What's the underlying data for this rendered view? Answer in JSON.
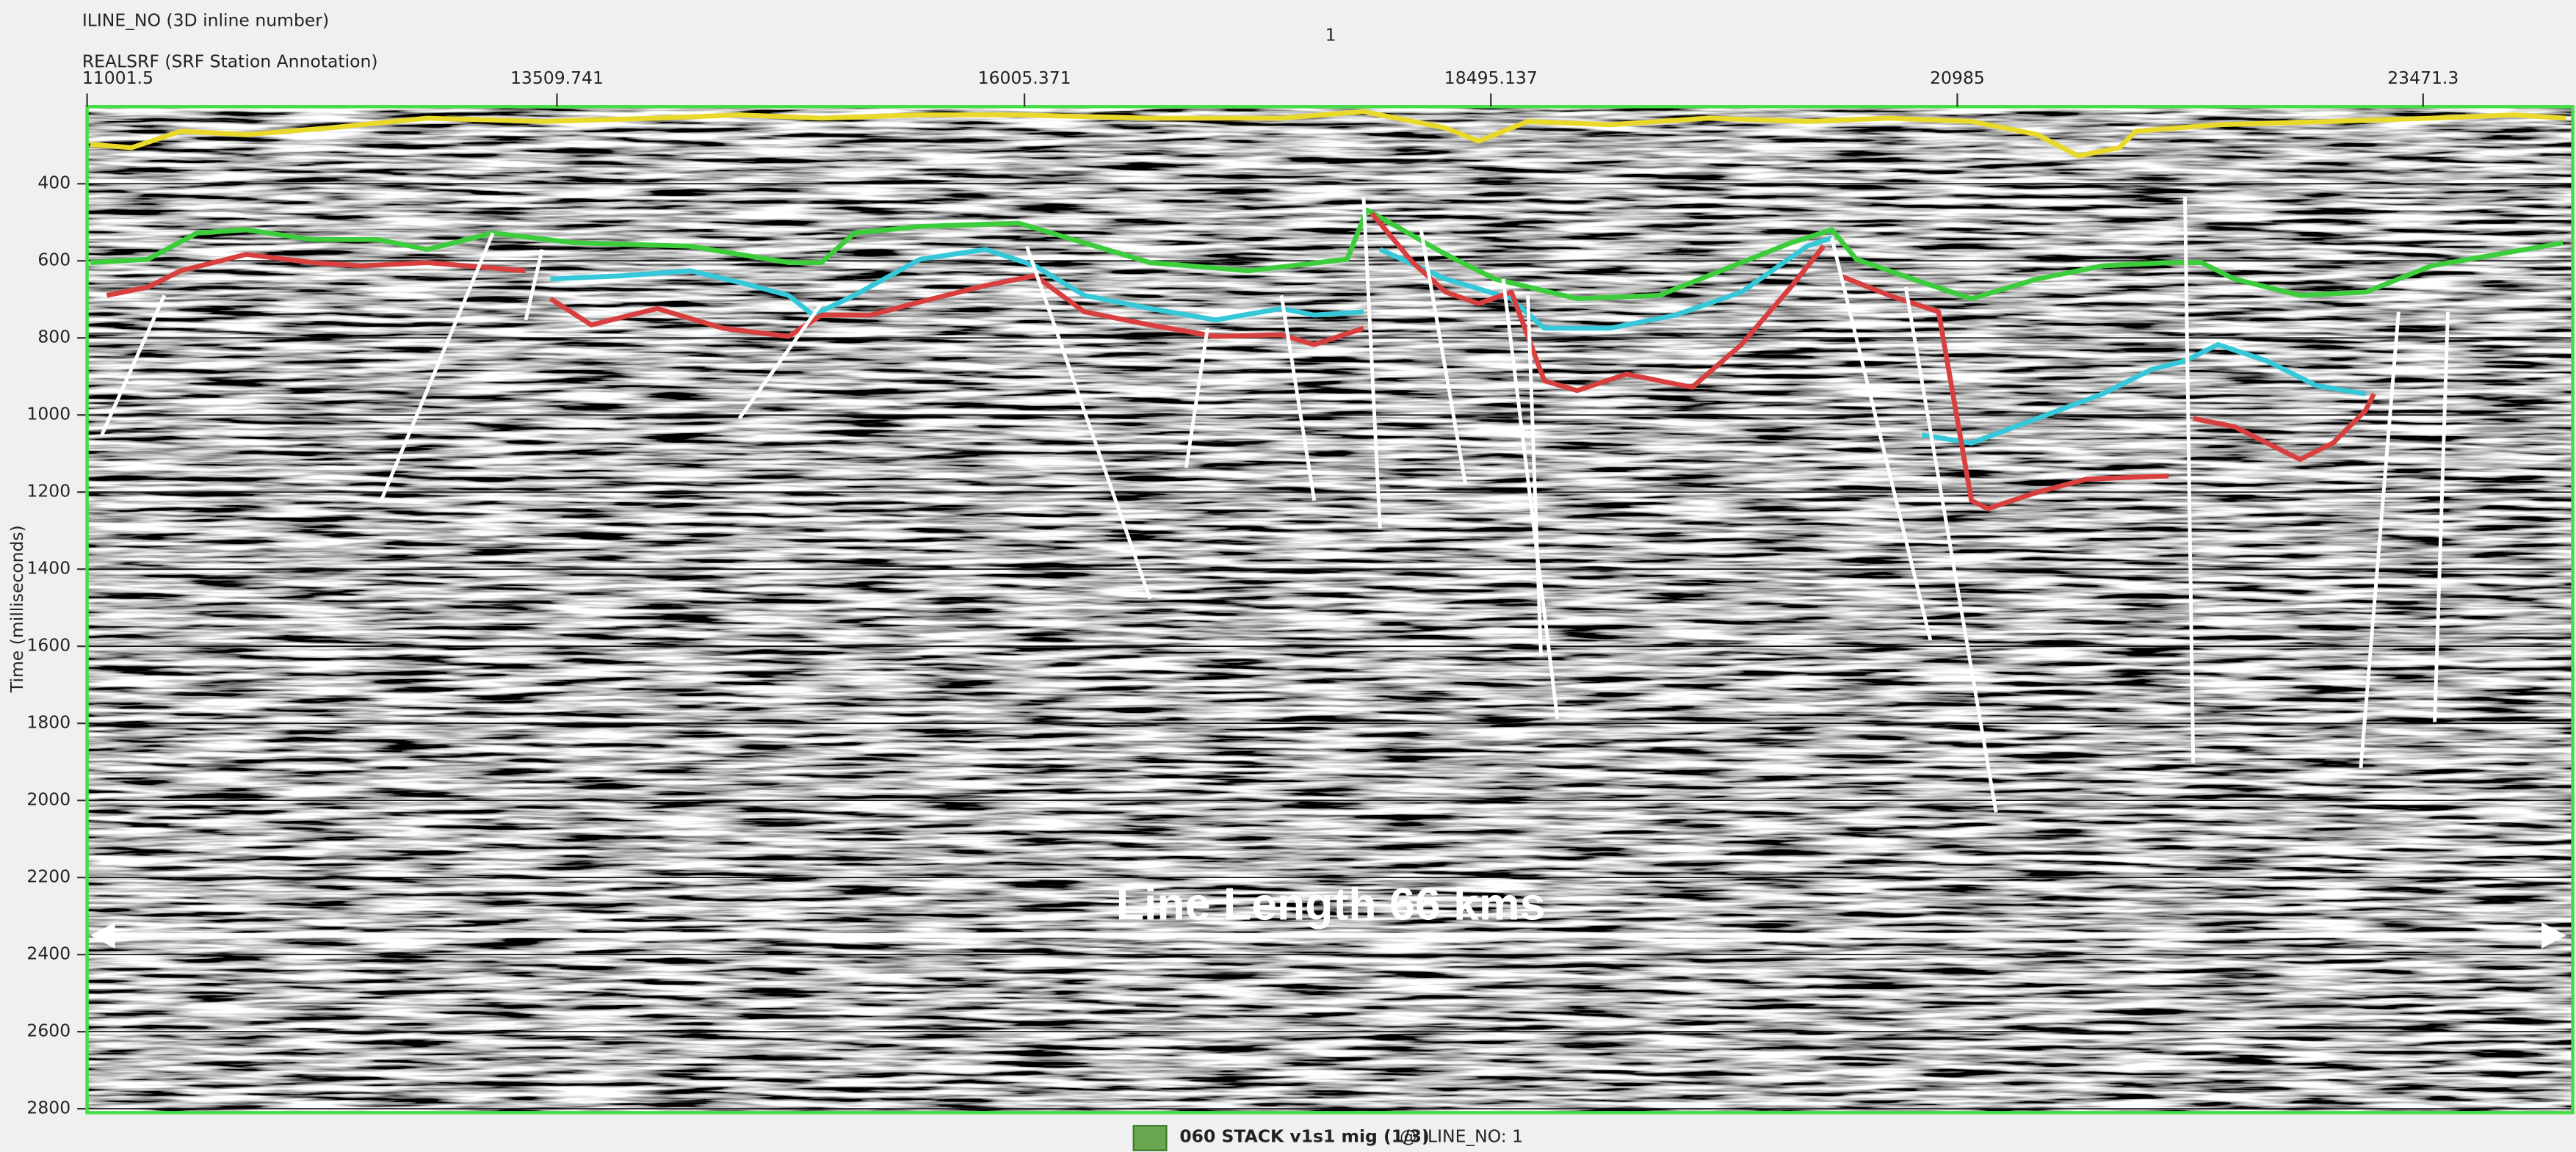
{
  "header": {
    "inline_label": "ILINE_NO (3D inline number)",
    "inline_value": "1",
    "station_label": "REALSRF (SRF Station Annotation)"
  },
  "station_axis": {
    "lim": [
      11001.5,
      24270
    ],
    "ticks": [
      11001.5,
      13509.741,
      16005.371,
      18495.137,
      20985,
      23471.3
    ]
  },
  "time_axis": {
    "label": "Time (milliseconds)",
    "lim": [
      200,
      2810
    ],
    "ticks": [
      400,
      600,
      800,
      1000,
      1200,
      1400,
      1600,
      1800,
      2000,
      2200,
      2400,
      2600,
      2800
    ]
  },
  "annotation": "Line Length 66 kms",
  "footer": {
    "dataset": "060 STACK v1s1 mig (1/3)",
    "context": "@  ILINE_NO: 1"
  }
}
